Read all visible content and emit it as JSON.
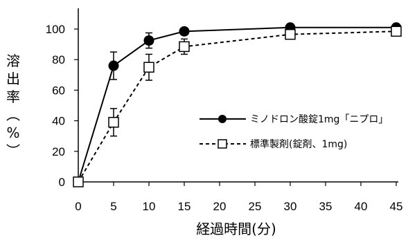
{
  "chart_data": {
    "type": "line",
    "title": "",
    "xlabel": "経過時間(分)",
    "ylabel": "溶出率(%)",
    "xlim": [
      0,
      45
    ],
    "ylim": [
      0,
      100
    ],
    "xticks": [
      "0",
      "5",
      "10",
      "15",
      "20",
      "25",
      "30",
      "35",
      "40",
      "45"
    ],
    "yticks": [
      "0",
      "20",
      "40",
      "60",
      "80",
      "100"
    ],
    "grid": false,
    "legend_position": "center-right",
    "series": [
      {
        "name": "ミノドロン酸錠1mg「ニプロ」",
        "marker": "filled-circle",
        "line_style": "solid",
        "x": [
          0,
          5,
          10,
          15,
          30,
          45
        ],
        "y": [
          0,
          76,
          92.5,
          98.5,
          101,
          101
        ],
        "error": [
          0,
          9,
          5,
          1.5,
          0,
          0
        ]
      },
      {
        "name": "標準製剤(錠剤、1mg)",
        "marker": "open-square",
        "line_style": "dashed",
        "x": [
          0,
          5,
          10,
          15,
          30,
          45
        ],
        "y": [
          0,
          39,
          75,
          88.5,
          96.5,
          98.5
        ],
        "error": [
          0,
          9,
          8.5,
          5,
          1.5,
          1
        ]
      }
    ]
  }
}
